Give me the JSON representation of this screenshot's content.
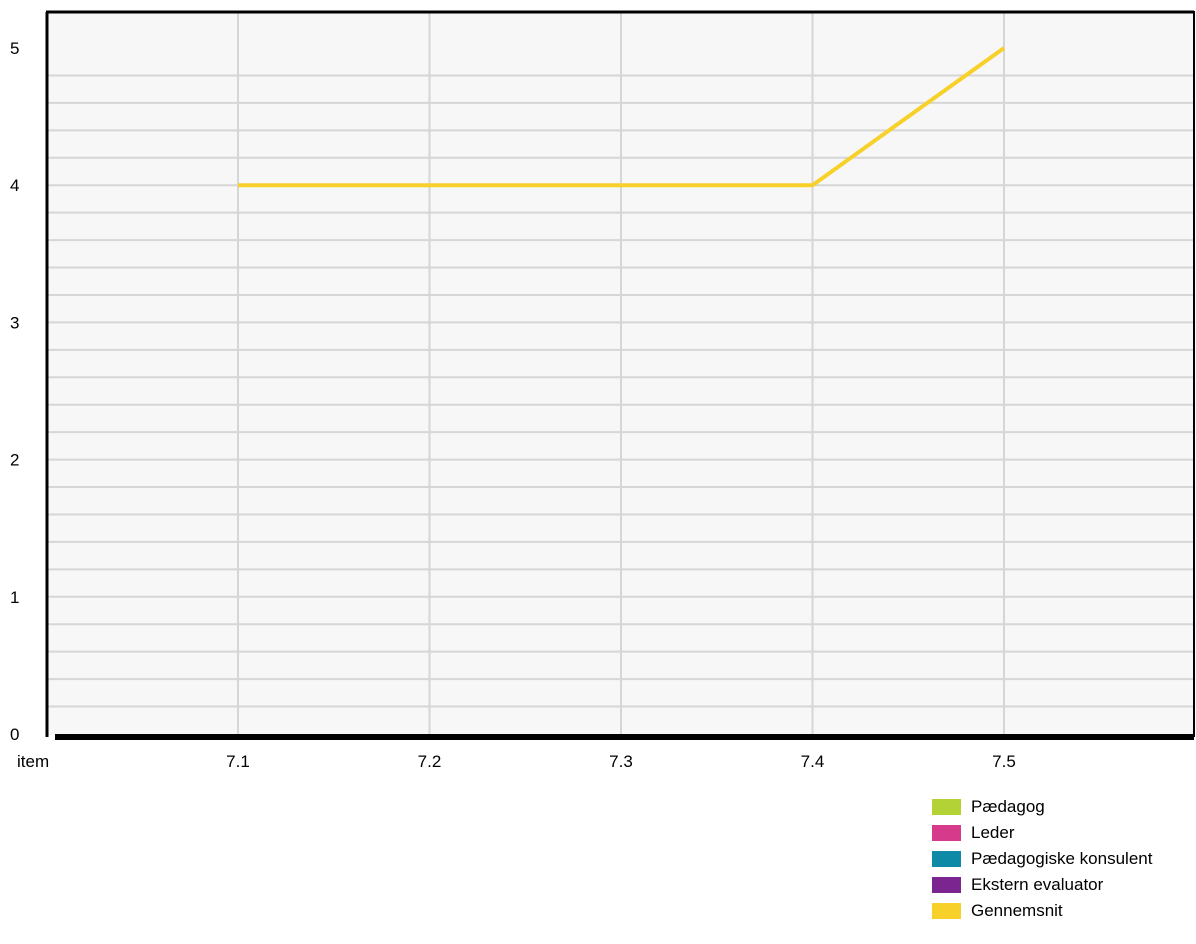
{
  "chart_data": {
    "type": "line",
    "title": "",
    "xlabel": "item",
    "ylabel": "",
    "categories": [
      "7.1",
      "7.2",
      "7.3",
      "7.4",
      "7.5"
    ],
    "ylim": [
      0,
      5
    ],
    "yticks": [
      "0",
      "1",
      "2",
      "3",
      "4",
      "5"
    ],
    "grid": true,
    "legend_position": "bottom-right",
    "series": [
      {
        "name": "Pædagog",
        "color": "#b2d235",
        "values": [
          null,
          null,
          null,
          null,
          null
        ]
      },
      {
        "name": "Leder",
        "color": "#d63a8a",
        "values": [
          null,
          null,
          null,
          null,
          null
        ]
      },
      {
        "name": "Pædagogiske konsulent",
        "color": "#0f8aa6",
        "values": [
          null,
          null,
          null,
          null,
          null
        ]
      },
      {
        "name": "Ekstern evaluator",
        "color": "#7b2590",
        "values": [
          null,
          null,
          null,
          null,
          null
        ]
      },
      {
        "name": "Gennemsnit",
        "color": "#f7d12a",
        "values": [
          4,
          4,
          4,
          4,
          5
        ]
      }
    ]
  }
}
